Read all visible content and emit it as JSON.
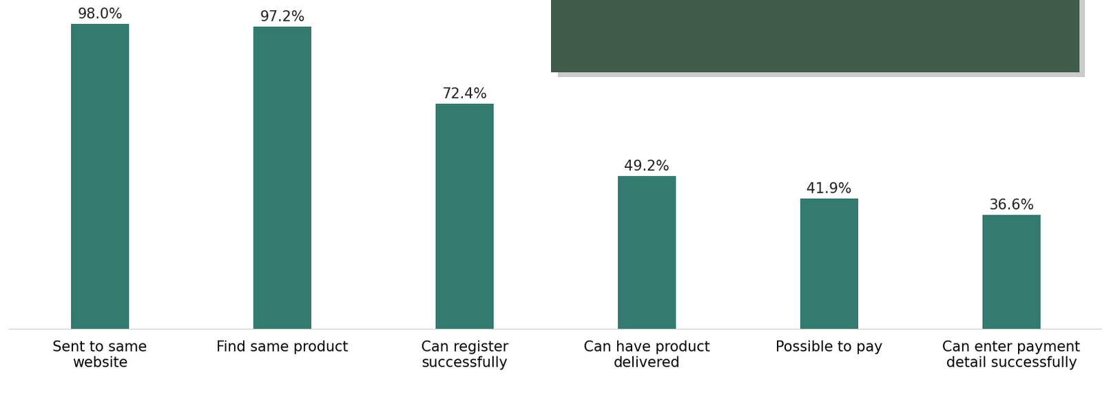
{
  "chart_data": {
    "type": "bar",
    "categories": [
      "Sent to same website",
      "Find same product",
      "Can register successfully",
      "Can have product delivered",
      "Possible to pay",
      "Can enter payment detail successfully"
    ],
    "values": [
      98.0,
      97.2,
      72.4,
      49.2,
      41.9,
      36.6
    ],
    "value_labels": [
      "98.0%",
      "97.2%",
      "72.4%",
      "49.2%",
      "41.9%",
      "36.6%"
    ],
    "color": "#337b6e",
    "ylim": [
      0,
      100
    ],
    "grid": false,
    "data_labels": true,
    "tick_labels": "x"
  }
}
